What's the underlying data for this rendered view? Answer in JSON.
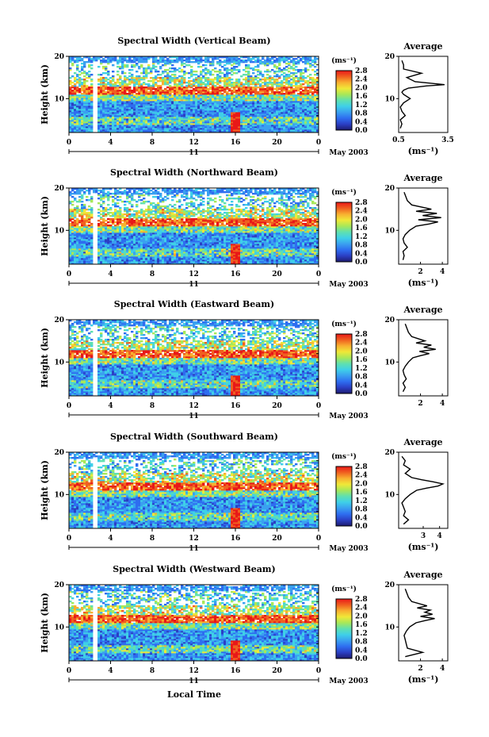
{
  "figure": {
    "y_axis_label": "Height (km)",
    "x_axis_label": "Local Time",
    "date_label": "May 2003",
    "day_label": "11",
    "colorbar_unit": "(ms⁻¹)",
    "avg_title": "Average",
    "avg_unit": "(ms⁻¹)"
  },
  "colors": {
    "background": "#ffffff",
    "missing_data_gap": "#ffffff",
    "colorscale": [
      "#1d1b6e",
      "#2b3fc4",
      "#2e6df0",
      "#3aa0f0",
      "#3fd0e8",
      "#5fe0b0",
      "#a8e858",
      "#f0e838",
      "#f8b030",
      "#f06020",
      "#e81818"
    ]
  },
  "chart_data": [
    {
      "type": "heatmap",
      "title": "Spectral Width (Vertical Beam)",
      "xlabel": "Local Time",
      "ylabel": "Height (km)",
      "xlim": [
        0,
        24
      ],
      "ylim": [
        2,
        20
      ],
      "xticks": [
        "0",
        "4",
        "8",
        "12",
        "16",
        "20",
        "0"
      ],
      "yticks": [
        "10",
        "20"
      ],
      "colorbar": {
        "label": "(ms⁻¹)",
        "ticks": [
          "0.0",
          "0.4",
          "0.8",
          "1.2",
          "1.6",
          "2.0",
          "2.4",
          "2.8"
        ]
      },
      "average_profile": {
        "title": "Average",
        "xlabel": "(ms⁻¹)",
        "xlim": [
          0.5,
          3.5
        ],
        "xticks": [
          "0.5",
          "3.5"
        ],
        "yticks": [
          "10",
          "20"
        ],
        "x": [
          0.6,
          0.7,
          0.6,
          0.9,
          0.7,
          0.6,
          0.8,
          1.2,
          0.8,
          0.7,
          0.8,
          1.1,
          2.2,
          3.3,
          1.5,
          1.0,
          1.9,
          0.8,
          0.8,
          0.7
        ],
        "y": [
          3,
          4,
          5,
          6,
          7,
          8,
          9,
          10,
          11,
          11.5,
          12,
          12.5,
          13,
          13.3,
          14,
          15,
          16,
          17,
          18,
          19
        ]
      }
    },
    {
      "type": "heatmap",
      "title": "Spectral Width (Northward Beam)",
      "xlabel": "Local Time",
      "ylabel": "Height (km)",
      "xlim": [
        0,
        24
      ],
      "ylim": [
        2,
        20
      ],
      "xticks": [
        "0",
        "4",
        "8",
        "12",
        "16",
        "20",
        "0"
      ],
      "yticks": [
        "10",
        "20"
      ],
      "colorbar": {
        "label": "(ms⁻¹)",
        "ticks": [
          "0.0",
          "0.4",
          "0.8",
          "1.2",
          "1.6",
          "2.0",
          "2.4",
          "2.8"
        ]
      },
      "average_profile": {
        "title": "Average",
        "xlabel": "(ms⁻¹)",
        "xlim": [
          0,
          4.5
        ],
        "xticks": [
          "2",
          "4"
        ],
        "yticks": [
          "10",
          "20"
        ],
        "x": [
          0.4,
          0.5,
          0.4,
          0.8,
          0.5,
          0.4,
          0.6,
          1.0,
          1.6,
          2.8,
          3.6,
          1.8,
          3.9,
          2.2,
          3.5,
          1.6,
          3.0,
          1.2,
          0.8,
          0.5
        ],
        "y": [
          3,
          4,
          5,
          6,
          7,
          8,
          9,
          10,
          11,
          11.5,
          12,
          12.5,
          13,
          13.5,
          14,
          14.5,
          15,
          16,
          17,
          19
        ]
      }
    },
    {
      "type": "heatmap",
      "title": "Spectral Width (Eastward Beam)",
      "xlabel": "Local Time",
      "ylabel": "Height (km)",
      "xlim": [
        0,
        24
      ],
      "ylim": [
        2,
        20
      ],
      "xticks": [
        "0",
        "4",
        "8",
        "12",
        "16",
        "20",
        "0"
      ],
      "yticks": [
        "10",
        "20"
      ],
      "colorbar": {
        "label": "(ms⁻¹)",
        "ticks": [
          "0.0",
          "0.4",
          "0.8",
          "1.2",
          "1.6",
          "2.0",
          "2.4",
          "2.8"
        ]
      },
      "average_profile": {
        "title": "Average",
        "xlabel": "",
        "xlim": [
          0,
          4.5
        ],
        "xticks": [
          "2",
          "4"
        ],
        "yticks": [
          "10",
          "20"
        ],
        "x": [
          0.4,
          0.6,
          0.4,
          0.7,
          0.5,
          0.4,
          0.6,
          0.9,
          1.3,
          2.0,
          2.8,
          1.9,
          3.4,
          2.3,
          3.0,
          1.6,
          2.4,
          1.2,
          0.9,
          0.6
        ],
        "y": [
          3,
          4,
          5,
          6,
          7,
          8,
          9,
          10,
          11,
          11.5,
          12,
          12.5,
          13,
          13.5,
          14,
          14.5,
          15,
          16,
          17,
          19
        ]
      }
    },
    {
      "type": "heatmap",
      "title": "Spectral Width (Southward Beam)",
      "xlabel": "Local Time",
      "ylabel": "Height (km)",
      "xlim": [
        0,
        24
      ],
      "ylim": [
        2,
        20
      ],
      "xticks": [
        "0",
        "4",
        "8",
        "12",
        "16",
        "20",
        "0"
      ],
      "yticks": [
        "10",
        "20"
      ],
      "colorbar": {
        "label": "(ms⁻¹)",
        "ticks": [
          "0.0",
          "0.4",
          "0.8",
          "1.2",
          "1.6",
          "2.0",
          "2.4",
          "2.8"
        ]
      },
      "average_profile": {
        "title": "Average",
        "xlabel": "(ms⁻¹)",
        "xlim": [
          1.5,
          4.5
        ],
        "xticks": [
          "3",
          "4"
        ],
        "yticks": [
          "10",
          "20"
        ],
        "x": [
          1.8,
          2.1,
          1.8,
          1.9,
          1.8,
          1.7,
          1.9,
          2.2,
          2.6,
          3.2,
          3.9,
          4.2,
          3.6,
          2.9,
          2.3,
          1.9,
          2.2,
          1.8,
          1.9,
          1.7
        ],
        "y": [
          3,
          4,
          5,
          6,
          7,
          8,
          9,
          10,
          11,
          11.5,
          12,
          12.5,
          13,
          13.5,
          14,
          15,
          16,
          17,
          18,
          19
        ]
      }
    },
    {
      "type": "heatmap",
      "title": "Spectral Width (Westward Beam)",
      "xlabel": "Local Time",
      "ylabel": "Height (km)",
      "xlim": [
        0,
        24
      ],
      "ylim": [
        2,
        20
      ],
      "xticks": [
        "0",
        "4",
        "8",
        "12",
        "16",
        "20",
        "0"
      ],
      "yticks": [
        "10",
        "20"
      ],
      "colorbar": {
        "label": "(ms⁻¹)",
        "ticks": [
          "0.0",
          "0.4",
          "0.8",
          "1.2",
          "1.6",
          "2.0",
          "2.4",
          "2.8"
        ]
      },
      "average_profile": {
        "title": "Average",
        "xlabel": "(ms⁻¹)",
        "xlim": [
          0,
          4.5
        ],
        "xticks": [
          "2",
          "4"
        ],
        "yticks": [
          "10",
          "20"
        ],
        "x": [
          0.6,
          2.2,
          0.8,
          0.7,
          0.6,
          0.5,
          0.7,
          1.0,
          1.6,
          2.4,
          3.3,
          2.0,
          3.1,
          2.4,
          2.9,
          1.7,
          2.6,
          1.2,
          0.9,
          0.6
        ],
        "y": [
          3,
          4,
          5,
          6,
          7,
          8,
          9,
          10,
          11,
          11.5,
          12,
          12.5,
          13,
          13.5,
          14,
          14.5,
          15,
          16,
          17,
          19
        ]
      }
    }
  ]
}
